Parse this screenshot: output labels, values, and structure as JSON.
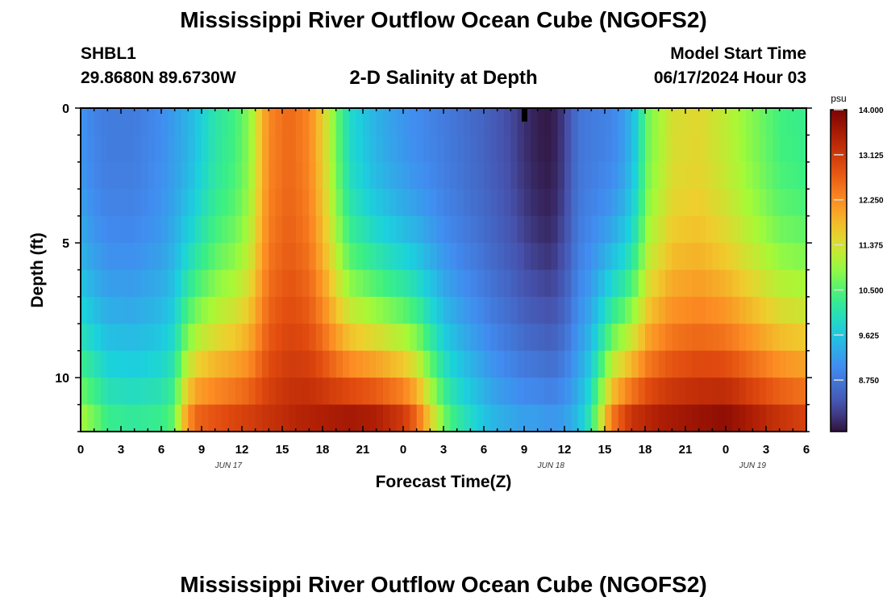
{
  "header": {
    "title": "Mississippi River Outflow Ocean Cube (NGOFS2)",
    "station": "SHBL1",
    "coords": "29.8680N  89.6730W",
    "subtitle": "2-D Salinity at Depth",
    "model_start_label": "Model Start Time",
    "model_start_value": "06/17/2024 Hour 03"
  },
  "footer": {
    "title": "Mississippi River Outflow Ocean Cube (NGOFS2)"
  },
  "chart_data": {
    "type": "heatmap",
    "title": "2-D Salinity at Depth",
    "xlabel": "Forecast Time(Z)",
    "ylabel": "Depth (ft)",
    "x_tick_labels": [
      "0",
      "3",
      "6",
      "9",
      "12",
      "15",
      "18",
      "21",
      "0",
      "3",
      "6",
      "9",
      "12",
      "15",
      "18",
      "21",
      "0",
      "3",
      "6"
    ],
    "x_date_labels": [
      {
        "hour_index": 11,
        "label": "JUN 17"
      },
      {
        "hour_index": 35,
        "label": "JUN 18"
      },
      {
        "hour_index": 50,
        "label": "JUN 19"
      }
    ],
    "x_range_hours": [
      0,
      54
    ],
    "y_ticks": [
      0,
      5,
      10
    ],
    "y_range_ft": [
      0,
      12
    ],
    "depth_levels_ft": [
      0.5,
      1.5,
      2.5,
      3.5,
      4.5,
      5.5,
      6.5,
      7.5,
      8.5,
      9.5,
      10.5,
      11.5
    ],
    "colorbar": {
      "unit": "psu",
      "min": 7.75,
      "max": 14.0,
      "tick_labels": [
        "14.000",
        "13.125",
        "12.250",
        "11.375",
        "10.500",
        "9.625",
        "8.750"
      ],
      "ticks": [
        14.0,
        13.125,
        12.25,
        11.375,
        10.5,
        9.625,
        8.75
      ]
    },
    "profile_surface": {
      "hours": [
        0,
        1,
        2,
        4,
        6,
        8,
        10,
        11.5,
        12.5,
        13.3,
        14,
        15.5,
        17,
        18,
        19,
        20,
        22,
        24,
        26,
        28,
        30,
        32,
        33,
        34,
        35,
        36,
        37,
        38,
        39.5,
        40.5,
        41.5,
        42,
        43,
        44,
        46,
        48,
        50,
        52,
        54
      ],
      "salinity": [
        9.1,
        8.9,
        8.8,
        8.8,
        9.0,
        9.4,
        10.1,
        10.4,
        10.8,
        11.6,
        12.3,
        12.6,
        12.3,
        11.6,
        10.7,
        9.9,
        9.4,
        9.1,
        8.9,
        8.7,
        8.5,
        8.2,
        8.0,
        7.85,
        7.8,
        8.1,
        8.7,
        8.8,
        8.9,
        9.2,
        9.8,
        10.6,
        11.0,
        11.4,
        11.5,
        11.2,
        10.8,
        10.4,
        10.3
      ]
    },
    "profile_bottom": {
      "hours": [
        0,
        1,
        2,
        4,
        6,
        7,
        7.5,
        8.5,
        10,
        12,
        14,
        16,
        18,
        20,
        22,
        24,
        25,
        26,
        27,
        28,
        29,
        30,
        31,
        32,
        33,
        34,
        35,
        36,
        37,
        38,
        39.5,
        41,
        43,
        46,
        48,
        50,
        52,
        54
      ],
      "salinity": [
        11.0,
        10.7,
        10.3,
        10.2,
        10.3,
        10.6,
        11.6,
        12.6,
        12.8,
        13.0,
        13.2,
        13.4,
        13.5,
        13.6,
        13.5,
        13.1,
        12.6,
        11.6,
        10.7,
        10.2,
        9.9,
        9.6,
        9.4,
        9.3,
        9.2,
        9.2,
        9.1,
        9.2,
        9.5,
        10.2,
        12.4,
        13.2,
        13.5,
        13.7,
        13.8,
        13.5,
        13.2,
        13.0
      ]
    },
    "annotations": [
      {
        "label": "missing data marker",
        "hour": 33,
        "depth_ft": [
          0,
          0.5
        ]
      }
    ]
  }
}
